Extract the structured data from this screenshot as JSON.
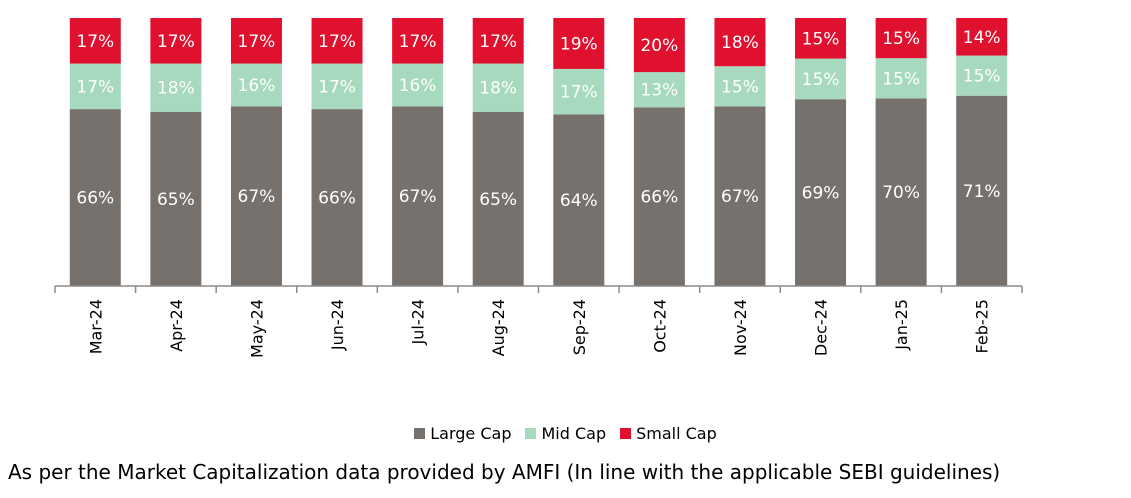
{
  "chart_data": {
    "type": "bar",
    "stacked": true,
    "percent_stacked": true,
    "categories": [
      "Mar-24",
      "Apr-24",
      "May-24",
      "Jun-24",
      "Jul-24",
      "Aug-24",
      "Sep-24",
      "Oct-24",
      "Nov-24",
      "Dec-24",
      "Jan-25",
      "Feb-25"
    ],
    "series": [
      {
        "name": "Large Cap",
        "color": "#76716c",
        "values": [
          66,
          65,
          67,
          66,
          67,
          65,
          64,
          66,
          67,
          69,
          70,
          71
        ]
      },
      {
        "name": "Mid Cap",
        "color": "#a6d9bd",
        "values": [
          17,
          18,
          16,
          17,
          16,
          18,
          17,
          13,
          15,
          15,
          15,
          15
        ]
      },
      {
        "name": "Small Cap",
        "color": "#e0102f",
        "values": [
          17,
          17,
          17,
          17,
          17,
          17,
          19,
          20,
          18,
          15,
          15,
          14
        ]
      }
    ],
    "value_suffix": "%",
    "legend_position": "bottom",
    "grid": false
  },
  "footnote": "As per the Market Capitalization data provided by AMFI (In line with the applicable SEBI guidelines)"
}
